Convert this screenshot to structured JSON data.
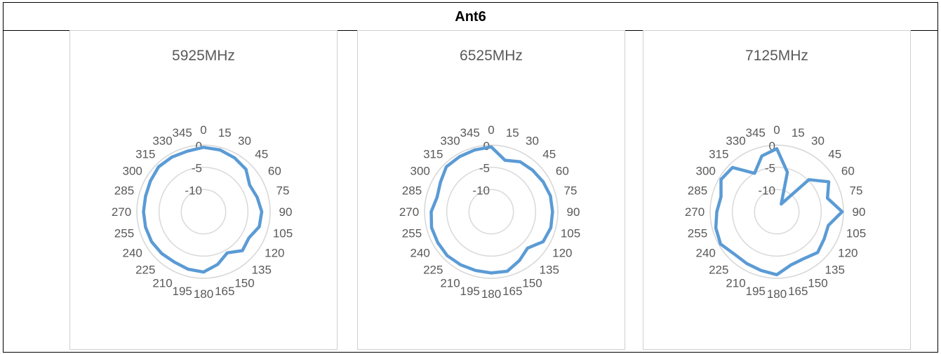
{
  "table": {
    "title": "Ant6"
  },
  "chart_data": [
    {
      "type": "radar",
      "title": "5925MHz",
      "angles": [
        "0",
        "15",
        "30",
        "45",
        "60",
        "75",
        "90",
        "105",
        "120",
        "135",
        "150",
        "165",
        "180",
        "195",
        "210",
        "225",
        "240",
        "255",
        "270",
        "285",
        "300",
        "315",
        "330",
        "345"
      ],
      "radial_ticks": [
        "0",
        "-5",
        "-10"
      ],
      "rlim": [
        -15,
        0
      ],
      "color": "#5b9bd5",
      "values": [
        -0.5,
        -0.6,
        -1.0,
        -1.5,
        -3.0,
        -2.5,
        -1.9,
        -2.0,
        -3.2,
        -2.6,
        -4.3,
        -2.7,
        -1.4,
        -1.6,
        -1.9,
        -1.7,
        -1.5,
        -1.5,
        -1.5,
        -1.5,
        -1.2,
        -0.7,
        -0.8,
        -0.9
      ]
    },
    {
      "type": "radar",
      "title": "6525MHz",
      "angles": [
        "0",
        "15",
        "30",
        "45",
        "60",
        "75",
        "90",
        "105",
        "120",
        "135",
        "150",
        "165",
        "180",
        "195",
        "210",
        "225",
        "240",
        "255",
        "270",
        "285",
        "300",
        "315",
        "330",
        "345"
      ],
      "radial_ticks": [
        "0",
        "-5",
        "-10"
      ],
      "rlim": [
        -15,
        0
      ],
      "color": "#5b9bd5",
      "values": [
        -0.4,
        -3.0,
        -2.0,
        -1.8,
        -1.5,
        -1.2,
        -1.2,
        -1.1,
        -1.5,
        -3.4,
        -2.3,
        -1.1,
        -1.2,
        -1.3,
        -1.2,
        -1.0,
        -1.1,
        -1.1,
        -1.5,
        -2.4,
        -1.8,
        -0.7,
        -0.7,
        -0.6
      ]
    },
    {
      "type": "radar",
      "title": "7125MHz",
      "angles": [
        "0",
        "15",
        "30",
        "45",
        "60",
        "75",
        "90",
        "105",
        "120",
        "135",
        "150",
        "165",
        "180",
        "195",
        "210",
        "225",
        "240",
        "255",
        "270",
        "285",
        "300",
        "315",
        "330",
        "345"
      ],
      "radial_ticks": [
        "0",
        "-5",
        "-10"
      ],
      "rlim": [
        -15,
        0
      ],
      "color": "#5b9bd5",
      "values": [
        -0.8,
        -5.8,
        -13.0,
        -4.8,
        -1.5,
        -3.2,
        -0.3,
        -3.0,
        -2.7,
        -2.0,
        -2.8,
        -2.6,
        -0.8,
        -1.3,
        -1.5,
        -1.5,
        -0.4,
        -0.8,
        -1.5,
        -2.0,
        -0.5,
        -0.9,
        -5.0,
        -2.0
      ]
    }
  ]
}
